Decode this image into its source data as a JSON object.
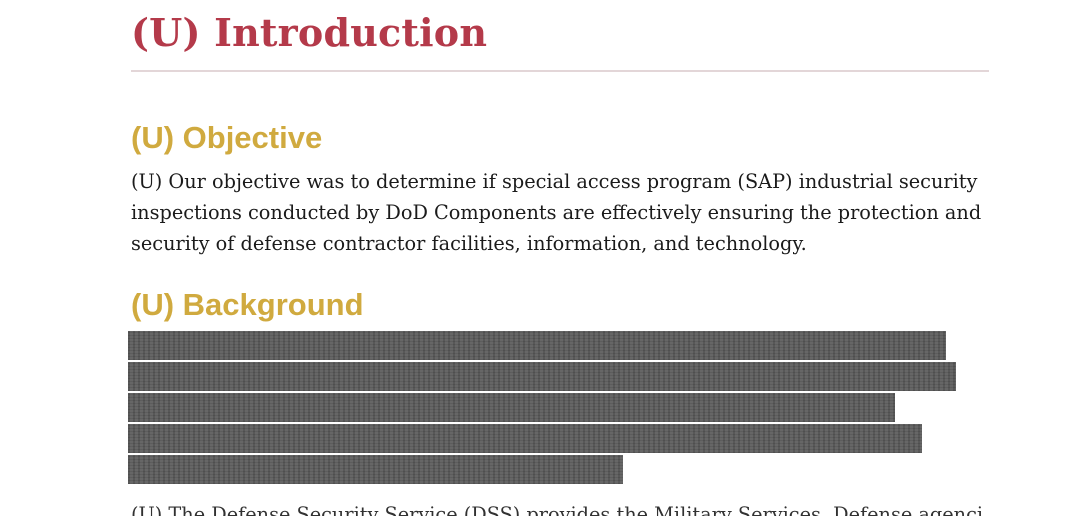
{
  "document": {
    "heading_main": "(U) Introduction",
    "sections": [
      {
        "heading": "(U) Objective",
        "paragraph_lines": [
          "(U) Our objective was to determine if special access program (SAP) industrial security",
          "inspections conducted by DoD Components are effectively ensuring the protection and",
          "security of defense contractor facilities, information, and technology."
        ]
      },
      {
        "heading": "(U) Background",
        "redacted_lines": 5,
        "next_paragraph_partial": "(U) The Defense Security Service (DSS) provides the Military Services, Defense agencies"
      }
    ],
    "colors": {
      "heading_main": "#b43a4a",
      "section_heading": "#d0aa3f",
      "rule": "#e3d6d8",
      "redaction": "#5b5b5b",
      "body_text": "#1b1b1b"
    }
  }
}
